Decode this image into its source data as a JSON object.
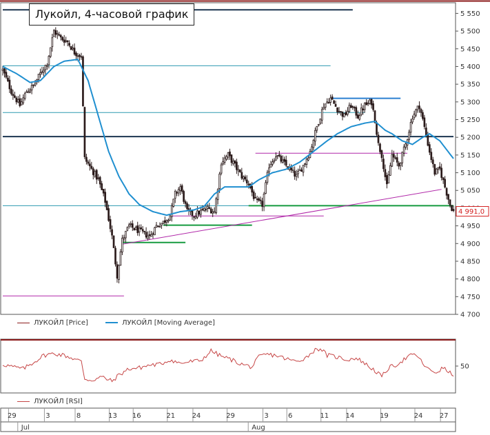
{
  "chart_data": {
    "type": "candlestick",
    "title": "Лукойл, 4-часовой график",
    "y_axis": {
      "ticks": [
        5550,
        5500,
        5450,
        5400,
        5350,
        5300,
        5250,
        5200,
        5150,
        5100,
        5050,
        5000,
        4950,
        4900,
        4850,
        4800,
        4750,
        4700
      ],
      "tick_labels": [
        "5 550",
        "5 500",
        "5 450",
        "5 400",
        "5 350",
        "5 300",
        "5 250",
        "5 200",
        "5 150",
        "5 100",
        "5 050",
        "5 000",
        "4 950",
        "4 900",
        "4 850",
        "4 800",
        "4 750",
        "4 700"
      ],
      "range": [
        4700,
        5580
      ]
    },
    "x_axis": {
      "day_ticks": [
        "29",
        "3",
        "8",
        "13",
        "16",
        "21",
        "24",
        "29",
        "3",
        "6",
        "11",
        "14",
        "19",
        "24",
        "27"
      ],
      "day_tick_index": [
        5,
        26,
        44,
        64,
        78,
        98,
        113,
        133,
        154,
        168,
        188,
        203,
        223,
        243,
        258
      ],
      "months": [
        "Jul",
        "Aug"
      ],
      "month_index": [
        10,
        145
      ],
      "bar_count": 265
    },
    "last_price": 4991.0,
    "last_price_label": "4 991,0",
    "series": [
      {
        "name": "ЛУКОЙЛ [Price]",
        "color": "#8b1a1a"
      },
      {
        "name": "ЛУКОЙЛ [Moving Average]",
        "color": "#1f8fd0"
      }
    ],
    "price_anchors": [
      [
        0,
        5390
      ],
      [
        5,
        5330
      ],
      [
        10,
        5290
      ],
      [
        14,
        5330
      ],
      [
        18,
        5345
      ],
      [
        22,
        5380
      ],
      [
        26,
        5410
      ],
      [
        30,
        5500
      ],
      [
        34,
        5480
      ],
      [
        38,
        5470
      ],
      [
        42,
        5440
      ],
      [
        46,
        5430
      ],
      [
        48,
        5140
      ],
      [
        52,
        5110
      ],
      [
        56,
        5080
      ],
      [
        60,
        5020
      ],
      [
        64,
        4920
      ],
      [
        67,
        4810
      ],
      [
        70,
        4910
      ],
      [
        74,
        4950
      ],
      [
        78,
        4940
      ],
      [
        82,
        4930
      ],
      [
        86,
        4920
      ],
      [
        90,
        4950
      ],
      [
        94,
        4960
      ],
      [
        98,
        4980
      ],
      [
        101,
        5040
      ],
      [
        104,
        5060
      ],
      [
        108,
        4990
      ],
      [
        112,
        4980
      ],
      [
        116,
        4990
      ],
      [
        120,
        5000
      ],
      [
        124,
        4990
      ],
      [
        128,
        5130
      ],
      [
        132,
        5150
      ],
      [
        136,
        5120
      ],
      [
        140,
        5090
      ],
      [
        144,
        5070
      ],
      [
        148,
        5020
      ],
      [
        152,
        5010
      ],
      [
        156,
        5120
      ],
      [
        160,
        5150
      ],
      [
        164,
        5130
      ],
      [
        168,
        5110
      ],
      [
        172,
        5090
      ],
      [
        176,
        5120
      ],
      [
        180,
        5160
      ],
      [
        184,
        5230
      ],
      [
        188,
        5290
      ],
      [
        192,
        5310
      ],
      [
        196,
        5280
      ],
      [
        200,
        5260
      ],
      [
        204,
        5290
      ],
      [
        208,
        5260
      ],
      [
        212,
        5290
      ],
      [
        216,
        5300
      ],
      [
        218,
        5250
      ],
      [
        220,
        5180
      ],
      [
        222,
        5150
      ],
      [
        225,
        5060
      ],
      [
        228,
        5150
      ],
      [
        232,
        5120
      ],
      [
        236,
        5180
      ],
      [
        240,
        5260
      ],
      [
        244,
        5290
      ],
      [
        246,
        5250
      ],
      [
        250,
        5160
      ],
      [
        253,
        5100
      ],
      [
        256,
        5110
      ],
      [
        259,
        5060
      ],
      [
        262,
        5010
      ],
      [
        264,
        4991
      ]
    ],
    "ma_anchors": [
      [
        0,
        5400
      ],
      [
        8,
        5380
      ],
      [
        16,
        5355
      ],
      [
        22,
        5360
      ],
      [
        30,
        5400
      ],
      [
        36,
        5415
      ],
      [
        44,
        5420
      ],
      [
        50,
        5360
      ],
      [
        56,
        5260
      ],
      [
        62,
        5160
      ],
      [
        68,
        5090
      ],
      [
        74,
        5040
      ],
      [
        80,
        5010
      ],
      [
        88,
        4990
      ],
      [
        96,
        4980
      ],
      [
        104,
        4990
      ],
      [
        112,
        4995
      ],
      [
        118,
        5005
      ],
      [
        124,
        5040
      ],
      [
        130,
        5060
      ],
      [
        138,
        5060
      ],
      [
        144,
        5060
      ],
      [
        150,
        5080
      ],
      [
        158,
        5100
      ],
      [
        166,
        5110
      ],
      [
        174,
        5130
      ],
      [
        182,
        5160
      ],
      [
        190,
        5190
      ],
      [
        196,
        5210
      ],
      [
        204,
        5230
      ],
      [
        212,
        5240
      ],
      [
        218,
        5245
      ],
      [
        224,
        5220
      ],
      [
        228,
        5210
      ],
      [
        234,
        5190
      ],
      [
        240,
        5180
      ],
      [
        246,
        5200
      ],
      [
        250,
        5210
      ],
      [
        256,
        5190
      ],
      [
        264,
        5140
      ]
    ],
    "levels": [
      {
        "price": 5560,
        "from": 0,
        "to": 205,
        "color": "#1b3550",
        "width": 2
      },
      {
        "price": 5402,
        "from": 0,
        "to": 192,
        "color": "#2d9ab0",
        "width": 1
      },
      {
        "price": 5310,
        "from": 193,
        "to": 233,
        "color": "#2b7fd1",
        "width": 2
      },
      {
        "price": 5270,
        "from": 0,
        "to": 212,
        "color": "#2d9ab0",
        "width": 1
      },
      {
        "price": 5202,
        "from": 0,
        "to": 264,
        "color": "#1b3550",
        "width": 2
      },
      {
        "price": 5155,
        "from": 148,
        "to": 237,
        "color": "#b026a8",
        "width": 1
      },
      {
        "price": 5007,
        "from": 0,
        "to": 264,
        "color": "#2d9ab0",
        "width": 1
      },
      {
        "price": 5007,
        "from": 144,
        "to": 264,
        "color": "#159a3f",
        "width": 2
      },
      {
        "price": 4978,
        "from": 99,
        "to": 188,
        "color": "#b026a8",
        "width": 1
      },
      {
        "price": 4952,
        "from": 94,
        "to": 146,
        "color": "#159a3f",
        "width": 2
      },
      {
        "price": 4903,
        "from": 70,
        "to": 107,
        "color": "#159a3f",
        "width": 2
      },
      {
        "price": 4752,
        "from": 0,
        "to": 71,
        "color": "#b026a8",
        "width": 1
      }
    ],
    "trendlines": [
      {
        "from": [
          70,
          4898
        ],
        "to": [
          257,
          5053
        ],
        "color": "#b026a8"
      }
    ],
    "rsi": {
      "name": "ЛУКОЙЛ [RSI]",
      "color": "#c64545",
      "reference_level": 50,
      "reference_label": "50",
      "range": [
        20,
        80
      ],
      "anchors": [
        [
          0,
          52
        ],
        [
          6,
          49
        ],
        [
          12,
          47
        ],
        [
          18,
          54
        ],
        [
          24,
          62
        ],
        [
          30,
          64
        ],
        [
          36,
          62
        ],
        [
          42,
          58
        ],
        [
          46,
          55
        ],
        [
          48,
          36
        ],
        [
          52,
          34
        ],
        [
          58,
          38
        ],
        [
          64,
          33
        ],
        [
          68,
          40
        ],
        [
          74,
          47
        ],
        [
          80,
          48
        ],
        [
          86,
          51
        ],
        [
          92,
          52
        ],
        [
          98,
          57
        ],
        [
          104,
          53
        ],
        [
          110,
          55
        ],
        [
          116,
          56
        ],
        [
          122,
          67
        ],
        [
          128,
          61
        ],
        [
          134,
          57
        ],
        [
          140,
          52
        ],
        [
          146,
          49
        ],
        [
          150,
          60
        ],
        [
          154,
          63
        ],
        [
          160,
          62
        ],
        [
          166,
          58
        ],
        [
          172,
          55
        ],
        [
          178,
          60
        ],
        [
          182,
          67
        ],
        [
          186,
          70
        ],
        [
          190,
          62
        ],
        [
          196,
          60
        ],
        [
          202,
          57
        ],
        [
          206,
          59
        ],
        [
          210,
          56
        ],
        [
          214,
          50
        ],
        [
          218,
          45
        ],
        [
          222,
          38
        ],
        [
          226,
          48
        ],
        [
          230,
          51
        ],
        [
          234,
          56
        ],
        [
          238,
          61
        ],
        [
          242,
          63
        ],
        [
          246,
          53
        ],
        [
          250,
          45
        ],
        [
          254,
          43
        ],
        [
          258,
          48
        ],
        [
          262,
          42
        ],
        [
          264,
          41
        ]
      ]
    },
    "colors": {
      "candle": "#2a1a1a",
      "border": "#555555",
      "grid": "#cfcfcf",
      "top_band": "#8b1a1a",
      "price_badge_text": "#d42020",
      "rsi_top_line": "#8b1a1a"
    }
  }
}
